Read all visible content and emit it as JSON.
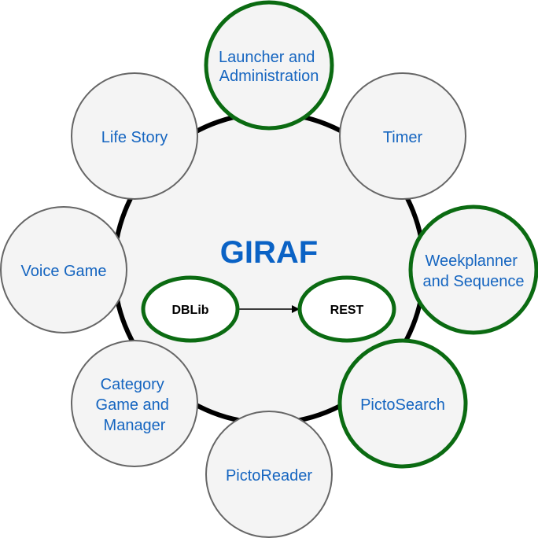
{
  "center": {
    "title": "GIRAF"
  },
  "modules": {
    "launcher": [
      "Launcher and",
      "Administration"
    ],
    "timer": [
      "Timer"
    ],
    "weekplanner": [
      "Weekplanner",
      "and Sequence"
    ],
    "pictosearch": [
      "PictoSearch"
    ],
    "pictoreader": [
      "PictoReader"
    ],
    "category": [
      "Category",
      "Game and",
      "Manager"
    ],
    "voice_game": [
      "Voice Game"
    ],
    "life_story": [
      "Life Story"
    ]
  },
  "inner": {
    "dblib": "DBLib",
    "rest": "REST"
  },
  "colors": {
    "highlight_border": "#0b6b12",
    "default_border": "#666666",
    "node_fill": "#f4f4f4",
    "text": "#1565c0",
    "title": "#0a62c5"
  }
}
